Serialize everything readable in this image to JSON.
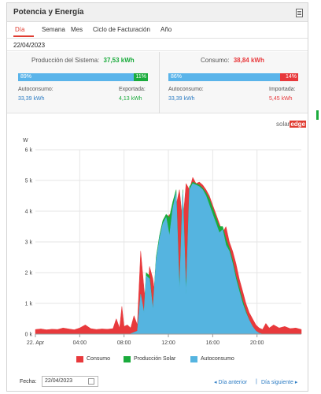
{
  "header": {
    "title": "Potencia y Energía"
  },
  "tabs": [
    {
      "label": "Día",
      "active": true
    },
    {
      "label": "Semana",
      "active": false
    },
    {
      "label": "Mes",
      "active": false
    },
    {
      "label": "Ciclo de Facturación",
      "active": false
    },
    {
      "label": "Año",
      "active": false
    }
  ],
  "selected_date": "22/04/2023",
  "production": {
    "label": "Producción del Sistema:",
    "value": "37,53 kWh",
    "self_pct": "89%",
    "export_pct": "11%",
    "self_label": "Autoconsumo:",
    "self_value": "33,39 kWh",
    "export_label": "Exportada:",
    "export_value": "4,13 kWh",
    "self_fraction": 0.89
  },
  "consumption": {
    "label": "Consumo:",
    "value": "38,84 kWh",
    "self_pct": "86%",
    "import_pct": "14%",
    "self_label": "Autoconsumo:",
    "self_value": "33,39 kWh",
    "import_label": "Importada:",
    "import_value": "5,45 kWh",
    "self_fraction": 0.86
  },
  "logo": {
    "main": "solar",
    "accent": "edge"
  },
  "colors": {
    "consumo": "#e8393c",
    "produccion": "#1aab3c",
    "autoconsumo": "#55b4e0",
    "accent": "#e03c31",
    "link": "#2c7cc4"
  },
  "chart_data": {
    "type": "area",
    "ylabel": "W",
    "y_ticks": [
      "0 k",
      "1 k",
      "2 k",
      "3 k",
      "4 k",
      "5 k",
      "6 k"
    ],
    "ylim": [
      0,
      6000
    ],
    "x_ticks": [
      "22. Apr",
      "04:00",
      "08:00",
      "12:00",
      "16:00",
      "20:00"
    ],
    "x_tick_hours": [
      0,
      4,
      8,
      12,
      16,
      20
    ],
    "xlim_hours": [
      0,
      24
    ],
    "grid": true,
    "legend_position": "bottom",
    "series": [
      {
        "name": "Consumo",
        "hours": [
          0,
          0.5,
          1,
          1.5,
          2,
          2.5,
          3,
          3.5,
          4,
          4.5,
          5,
          5.5,
          6,
          6.5,
          7,
          7.3,
          7.6,
          7.8,
          8,
          8.3,
          8.6,
          8.9,
          9.2,
          9.5,
          9.8,
          10,
          10.3,
          10.6,
          10.9,
          11.2,
          11.5,
          11.8,
          12.1,
          12.4,
          12.7,
          13,
          13.3,
          13.6,
          13.9,
          14.2,
          14.5,
          14.8,
          15.1,
          15.4,
          15.7,
          16,
          16.3,
          16.6,
          16.9,
          17.2,
          17.5,
          17.8,
          18.1,
          18.4,
          18.7,
          19,
          19.3,
          19.6,
          19.9,
          20.2,
          20.5,
          20.8,
          21.1,
          21.5,
          22,
          22.5,
          23,
          23.5,
          24
        ],
        "values": [
          150,
          170,
          140,
          160,
          150,
          200,
          170,
          140,
          200,
          300,
          180,
          150,
          170,
          160,
          180,
          500,
          200,
          900,
          250,
          300,
          200,
          600,
          300,
          2700,
          1500,
          800,
          2200,
          1800,
          1000,
          2600,
          3200,
          3700,
          3900,
          3200,
          4200,
          4700,
          3600,
          4900,
          4700,
          5100,
          4900,
          4950,
          4850,
          4700,
          4500,
          4200,
          3900,
          3600,
          3300,
          3500,
          3000,
          2700,
          2300,
          1800,
          1400,
          1000,
          700,
          500,
          300,
          200,
          150,
          350,
          200,
          300,
          200,
          250,
          180,
          200,
          150
        ]
      },
      {
        "name": "Producción Solar",
        "hours": [
          0,
          7.5,
          8.5,
          9.2,
          9.5,
          9.8,
          10,
          10.3,
          10.6,
          10.9,
          11.2,
          11.5,
          11.8,
          12.1,
          12.4,
          12.7,
          13,
          13.3,
          13.6,
          13.9,
          14.2,
          14.5,
          14.8,
          15.1,
          15.4,
          15.7,
          16,
          16.3,
          16.6,
          16.9,
          17.2,
          17.5,
          17.8,
          18.1,
          18.4,
          18.7,
          19,
          19.3,
          19.6,
          19.9,
          20.2,
          20.5,
          24
        ],
        "values": [
          0,
          0,
          0,
          100,
          1300,
          700,
          2000,
          1900,
          800,
          2500,
          3200,
          3700,
          3900,
          3800,
          4300,
          4700,
          1500,
          4700,
          1400,
          4800,
          4950,
          4900,
          4850,
          4750,
          4600,
          4400,
          4100,
          3800,
          3500,
          3500,
          3100,
          2800,
          2400,
          1900,
          1500,
          1100,
          750,
          450,
          250,
          100,
          30,
          0,
          0
        ]
      },
      {
        "name": "Autoconsumo",
        "hours": [
          0,
          7.5,
          8.5,
          9.2,
          9.5,
          9.8,
          10,
          10.3,
          10.6,
          10.9,
          11.2,
          11.5,
          11.8,
          12.1,
          12.4,
          12.7,
          13,
          13.3,
          13.6,
          13.9,
          14.2,
          14.5,
          14.8,
          15.1,
          15.4,
          15.7,
          16,
          16.3,
          16.6,
          16.9,
          17.2,
          17.5,
          17.8,
          18.1,
          18.4,
          18.7,
          19,
          19.3,
          19.6,
          19.9,
          20.2,
          20.5,
          24
        ],
        "values": [
          0,
          0,
          0,
          100,
          1300,
          700,
          1900,
          1800,
          800,
          2400,
          3100,
          3600,
          3800,
          3200,
          4100,
          4600,
          1400,
          4600,
          1300,
          4700,
          4900,
          4850,
          4800,
          4700,
          4500,
          4200,
          3900,
          3600,
          3300,
          3400,
          2900,
          2700,
          2300,
          1800,
          1400,
          1000,
          700,
          450,
          250,
          100,
          30,
          0,
          0
        ]
      }
    ]
  },
  "legend": [
    {
      "label": "Consumo"
    },
    {
      "label": "Producción Solar"
    },
    {
      "label": "Autoconsumo"
    }
  ],
  "footer": {
    "fecha_label": "Fecha:",
    "date_value": "22/04/2023",
    "prev_label": "Día anterior",
    "next_label": "Día siguiente",
    "separator": "|"
  }
}
